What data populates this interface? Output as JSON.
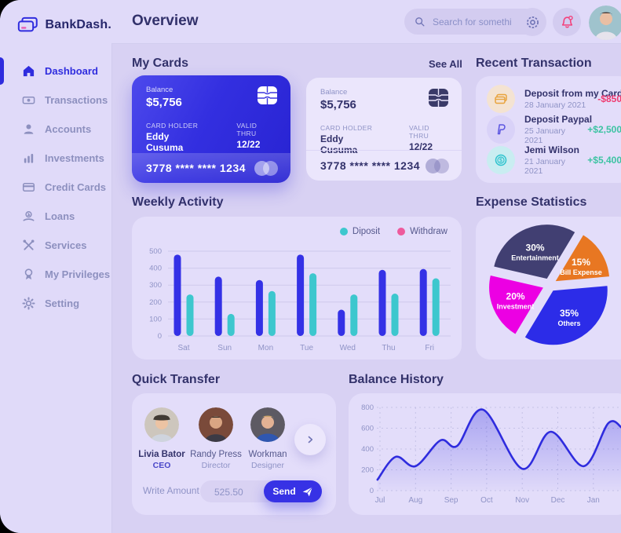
{
  "app": {
    "logo": "BankDash."
  },
  "colors": {
    "accent_blue": "#2F2CDE",
    "panel": "#E3DDFA",
    "negative_amount": "#EF396F",
    "positive_amount": "#3CC3A2",
    "legend_teal": "#3DC7CE",
    "legend_pink": "#EE5A9C",
    "card_gradient_start": "#4D49EC",
    "card_gradient_end": "#2823D2"
  },
  "sidebar": {
    "items": [
      {
        "label": "Dashboard",
        "icon": "home-icon",
        "active": true
      },
      {
        "label": "Transactions",
        "icon": "transfer-icon",
        "active": false
      },
      {
        "label": "Accounts",
        "icon": "user-icon",
        "active": false
      },
      {
        "label": "Investments",
        "icon": "investment-icon",
        "active": false
      },
      {
        "label": "Credit Cards",
        "icon": "credit-card-icon",
        "active": false
      },
      {
        "label": "Loans",
        "icon": "loan-icon",
        "active": false
      },
      {
        "label": "Services",
        "icon": "services-icon",
        "active": false
      },
      {
        "label": "My Privileges",
        "icon": "privileges-icon",
        "active": false
      },
      {
        "label": "Setting",
        "icon": "gear-icon",
        "active": false
      }
    ]
  },
  "header": {
    "title": "Overview",
    "search_placeholder": "Search for something"
  },
  "my_cards": {
    "title": "My Cards",
    "see_all": "See All",
    "cards": [
      {
        "balance_label": "Balance",
        "balance": "$5,756",
        "holder_label": "CARD HOLDER",
        "holder": "Eddy Cusuma",
        "valid_label": "VALID THRU",
        "valid": "12/22",
        "number": "3778 **** **** 1234"
      },
      {
        "balance_label": "Balance",
        "balance": "$5,756",
        "holder_label": "CARD HOLDER",
        "holder": "Eddy Cusuma",
        "valid_label": "VALID THRU",
        "valid": "12/22",
        "number": "3778 **** **** 1234"
      }
    ]
  },
  "recent_transactions": {
    "title": "Recent Transaction",
    "items": [
      {
        "icon": "card-deposit-icon",
        "title": "Deposit from my Card",
        "date": "28 January 2021",
        "amount": "-$850",
        "direction": "negative"
      },
      {
        "icon": "paypal-icon",
        "title": "Deposit Paypal",
        "date": "25 January 2021",
        "amount": "+$2,500",
        "direction": "positive"
      },
      {
        "icon": "dollar-coin-icon",
        "title": "Jemi Wilson",
        "date": "21 January 2021",
        "amount": "+$5,400",
        "direction": "positive"
      }
    ]
  },
  "weekly_activity": {
    "title": "Weekly Activity"
  },
  "expense_statistics": {
    "title": "Expense Statistics"
  },
  "quick_transfer": {
    "title": "Quick Transfer",
    "contacts": [
      {
        "name": "Livia Bator",
        "role": "CEO"
      },
      {
        "name": "Randy Press",
        "role": "Director"
      },
      {
        "name": "Workman",
        "role": "Designer"
      }
    ],
    "write_amount_label": "Write Amount",
    "amount_value": "525.50",
    "send_label": "Send"
  },
  "balance_history": {
    "title": "Balance History"
  },
  "chart_data": [
    {
      "type": "bar",
      "title": "Weekly Activity",
      "categories": [
        "Sat",
        "Sun",
        "Mon",
        "Tue",
        "Wed",
        "Thu",
        "Fri"
      ],
      "series": [
        {
          "name": "Withdraw",
          "color": "#3431E6",
          "values": [
            480,
            350,
            330,
            480,
            155,
            390,
            395
          ]
        },
        {
          "name": "Diposit",
          "color": "#3DC7CE",
          "values": [
            245,
            130,
            265,
            370,
            245,
            250,
            340
          ]
        }
      ],
      "ylim": [
        0,
        500
      ],
      "yticks": [
        0,
        100,
        200,
        300,
        400,
        500
      ],
      "legend": [
        {
          "label": "Diposit",
          "color": "#3DC7CE"
        },
        {
          "label": "Withdraw",
          "color": "#EE5A9C"
        }
      ],
      "legend_position": "top-right",
      "grid": true
    },
    {
      "type": "pie",
      "title": "Expense Statistics",
      "start_deg": 5,
      "slices": [
        {
          "label": "Bill Expense",
          "pct": 15,
          "color": "#E87722"
        },
        {
          "label": "Entertainment",
          "pct": 30,
          "color": "#413F72"
        },
        {
          "label": "Investment",
          "pct": 20,
          "color": "#EC00E3"
        },
        {
          "label": "Others",
          "pct": 35,
          "color": "#2C2CE8"
        }
      ]
    },
    {
      "type": "area",
      "title": "Balance History",
      "x_ticks": [
        "Jul",
        "Aug",
        "Sep",
        "Oct",
        "Nov",
        "Dec",
        "Jan"
      ],
      "yticks": [
        0,
        200,
        400,
        600,
        800
      ],
      "ylim": [
        0,
        800
      ],
      "line_color": "#2F2CDE",
      "grid": "dashed",
      "points": [
        [
          -0.07,
          105
        ],
        [
          0.44,
          325
        ],
        [
          1.0,
          235
        ],
        [
          1.7,
          483
        ],
        [
          2.17,
          430
        ],
        [
          2.9,
          778
        ],
        [
          4.0,
          210
        ],
        [
          4.8,
          566
        ],
        [
          5.73,
          235
        ],
        [
          6.42,
          648
        ],
        [
          6.8,
          605
        ]
      ]
    }
  ]
}
